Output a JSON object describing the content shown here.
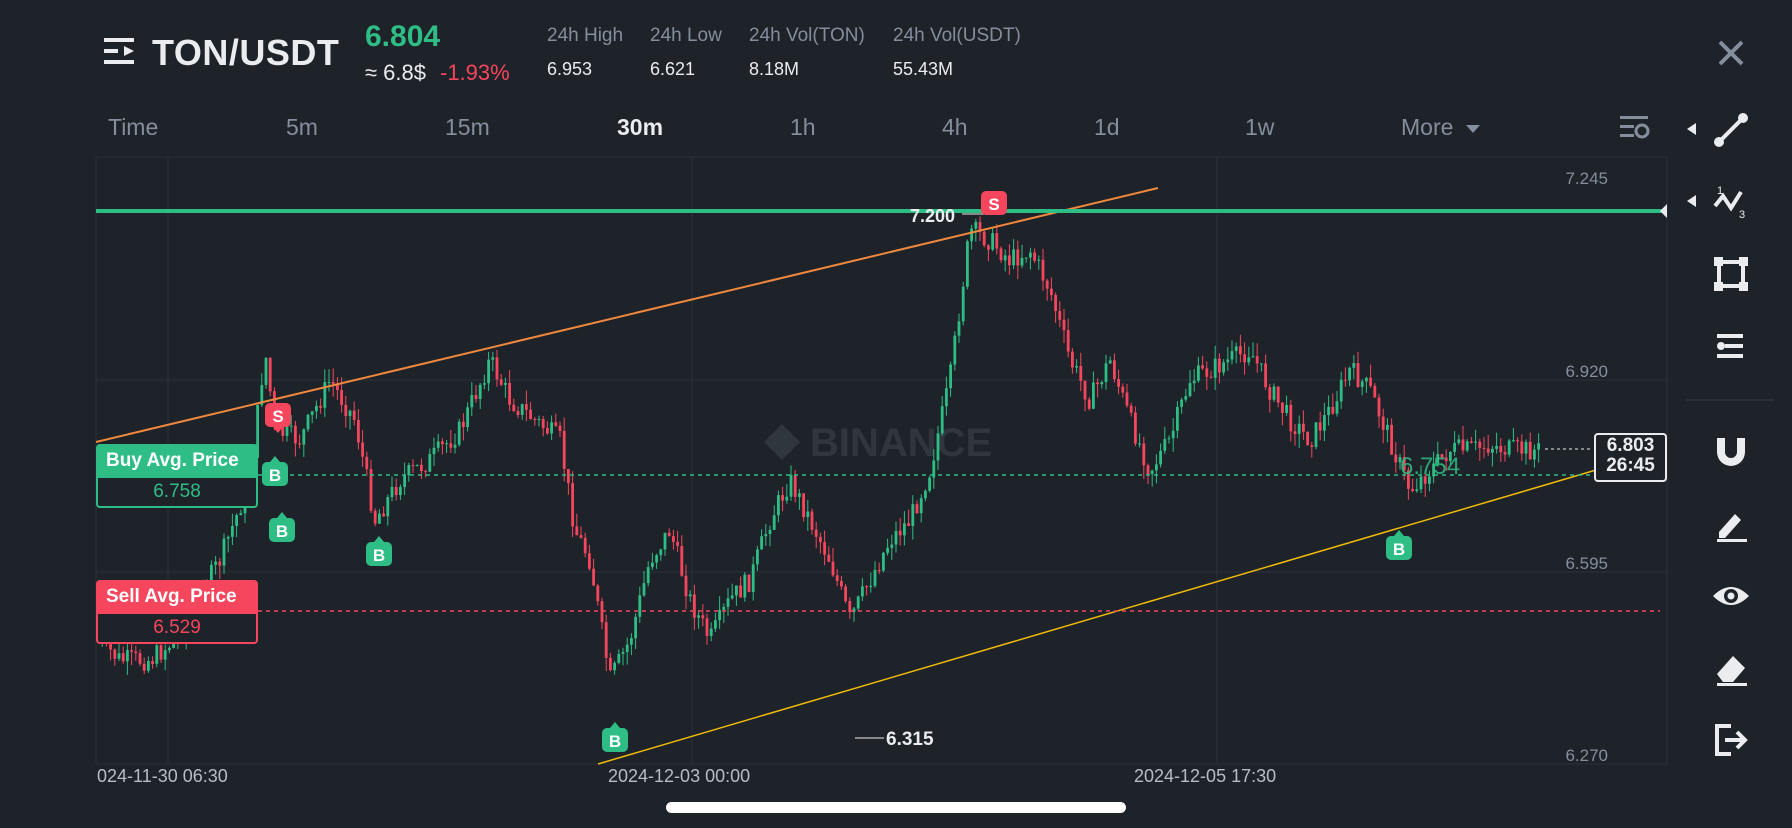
{
  "header": {
    "pair": "TON/USDT",
    "last_price": "6.804",
    "approx_price": "≈ 6.8$",
    "change_pct": "-1.93%",
    "stats": [
      {
        "label": "24h High",
        "value": "6.953"
      },
      {
        "label": "24h Low",
        "value": "6.621"
      },
      {
        "label": "24h Vol(TON)",
        "value": "8.18M"
      },
      {
        "label": "24h Vol(USDT)",
        "value": "55.43M"
      }
    ]
  },
  "timeframes": [
    "Time",
    "5m",
    "15m",
    "30m",
    "1h",
    "4h",
    "1d",
    "1w"
  ],
  "active_timeframe": "30m",
  "more_label": "More",
  "chart": {
    "watermark": "BINANCE",
    "price_axis": [
      "7.245",
      "6.920",
      "6.595",
      "6.270"
    ],
    "time_axis": [
      "024-11-30 06:30",
      "2024-12-03 00:00",
      "2024-12-05 17:30"
    ],
    "high_label": "7.200",
    "low_label": "6.315",
    "position_price": "6.754",
    "current_price": "6.803",
    "countdown": "26:45",
    "buy_avg": {
      "label": "Buy Avg. Price",
      "value": "6.758"
    },
    "sell_avg": {
      "label": "Sell Avg. Price",
      "value": "6.529"
    },
    "buy_marker": "B",
    "sell_marker": "S"
  },
  "side_tools": [
    "trend-line-icon",
    "wave-pattern-icon",
    "rectangle-tool-icon",
    "fib-tool-icon",
    "magnet-icon",
    "pencil-icon",
    "eye-icon",
    "eraser-icon",
    "exit-icon"
  ],
  "colors": {
    "background": "#1e2329",
    "up": "#2ebd85",
    "down": "#f6465d",
    "resistance": "#f0883e",
    "support": "#f0b90b",
    "horizontal": "#2ebd85"
  }
}
